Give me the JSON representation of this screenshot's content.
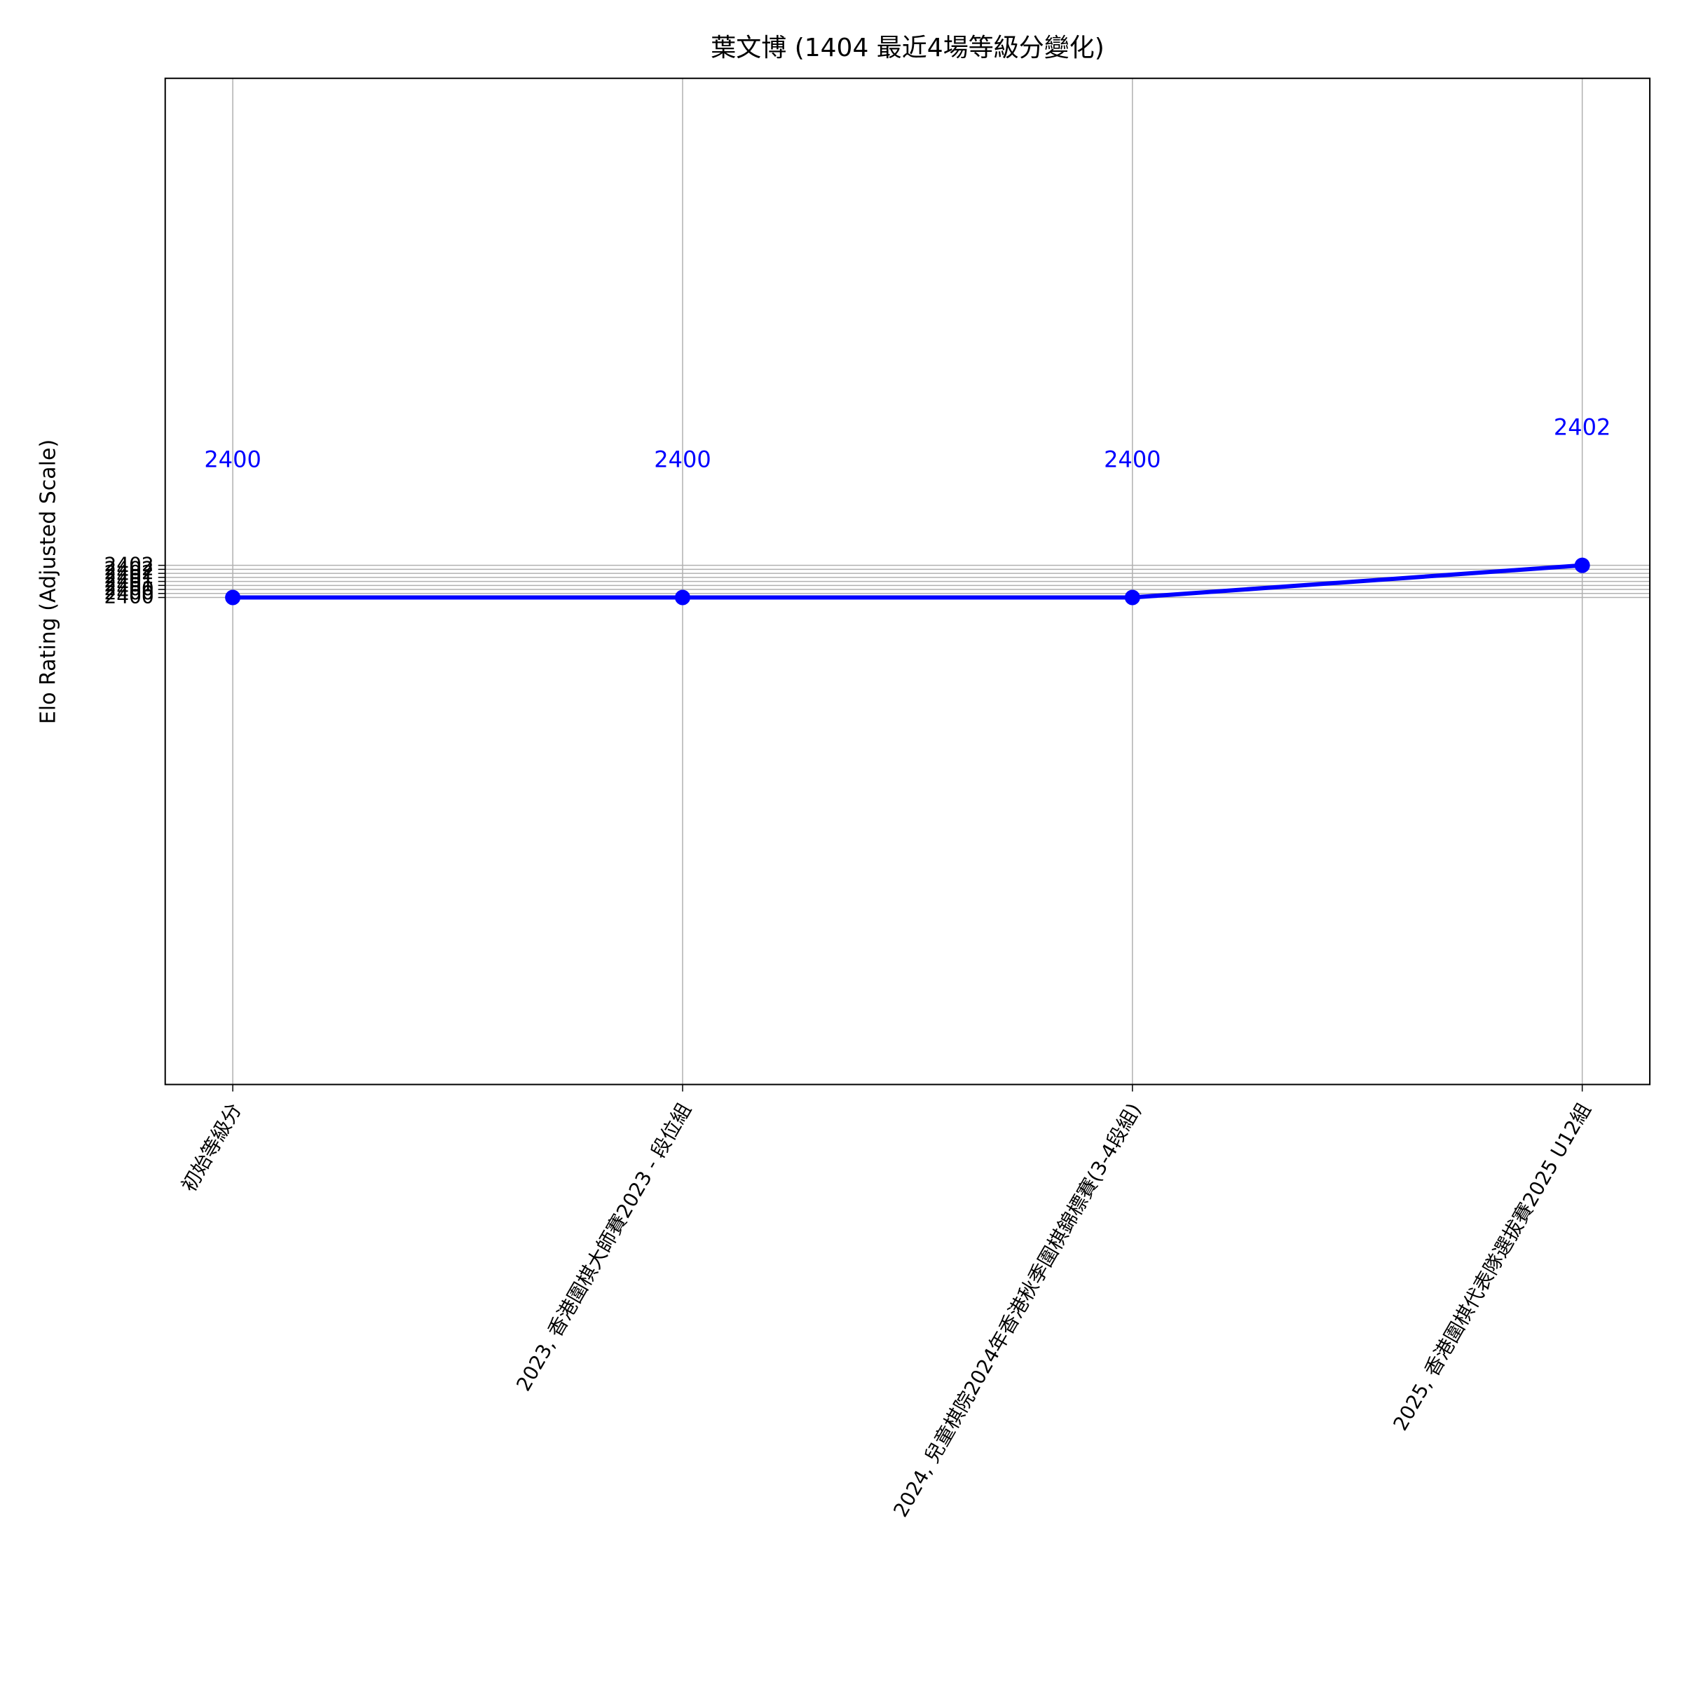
{
  "chart_data": {
    "type": "line",
    "title": "葉文博 (1404 最近4場等級分變化)",
    "y_label": "Elo Rating (Adjusted Scale)",
    "categories": [
      "初始等級分",
      "2023, 香港圍棋大師賽2023 - 段位組",
      "2024, 兒童棋院2024年香港秋季圍棋錦標賽(3-4段組)",
      "2025, 香港圍棋代表隊選拔賽2025 U12組"
    ],
    "series": [
      {
        "name": "Elo Rating",
        "color": "#0000ff",
        "values": [
          2400,
          2400,
          2400,
          2402
        ]
      }
    ],
    "ylim": [
      2369.7,
      2432.3
    ],
    "yticks": [
      2400,
      {
        "value": 2400.25,
        "label": "2400"
      },
      {
        "value": 2400.5,
        "label": "2400"
      },
      {
        "value": 2400.75,
        "label": "2401"
      },
      2401,
      {
        "value": 2401.25,
        "label": "2401"
      },
      {
        "value": 2401.5,
        "label": "2402"
      },
      {
        "value": 2401.75,
        "label": "2402"
      },
      2402
    ],
    "grid": true
  }
}
